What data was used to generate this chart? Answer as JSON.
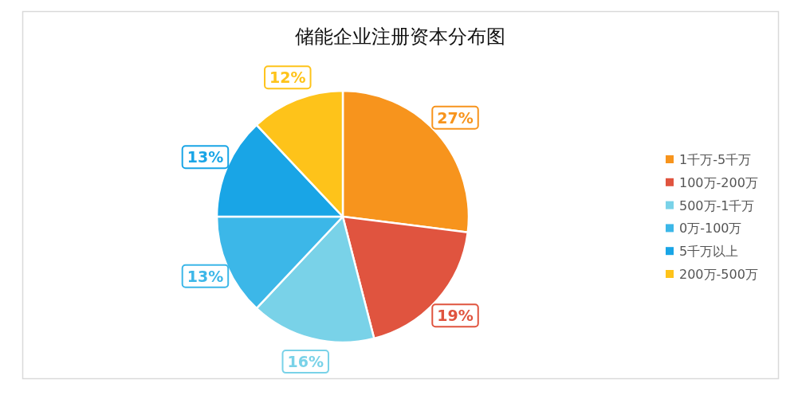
{
  "chart_data": {
    "type": "pie",
    "title": "储能企业注册资本分布图",
    "categories": [
      "1千万-5千万",
      "100万-200万",
      "500万-1千万",
      "0万-100万",
      "5千万以上",
      "200万-500万"
    ],
    "values": [
      27,
      19,
      16,
      13,
      13,
      12
    ],
    "value_labels": [
      "27%",
      "19%",
      "16%",
      "13%",
      "13%",
      "12%"
    ],
    "colors": [
      "#f7941d",
      "#e0543f",
      "#79d2e8",
      "#3cb7e8",
      "#19a5e6",
      "#fec31a"
    ],
    "legend": "right"
  }
}
